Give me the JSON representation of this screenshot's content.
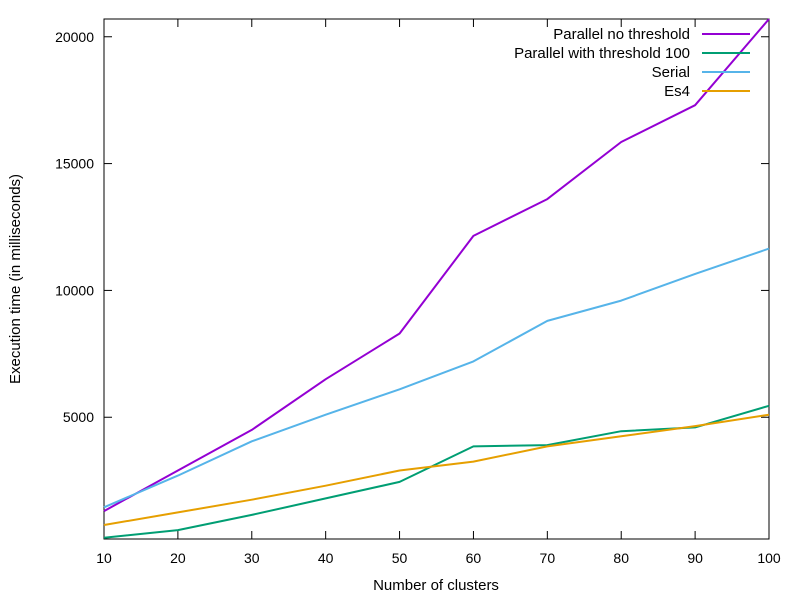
{
  "chart_data": {
    "type": "line",
    "title": "",
    "xlabel": "Number of clusters",
    "ylabel": "Execution time (in milliseconds)",
    "x": [
      10,
      20,
      30,
      40,
      50,
      60,
      70,
      80,
      90,
      100
    ],
    "xlim": [
      10,
      100
    ],
    "ylim": [
      200,
      20700
    ],
    "xticks": [
      10,
      20,
      30,
      40,
      50,
      60,
      70,
      80,
      90,
      100
    ],
    "yticks": [
      5000,
      10000,
      15000,
      20000
    ],
    "grid": false,
    "legend_position": "top-right",
    "series": [
      {
        "name": "Parallel no threshold",
        "color": "#9400d3",
        "values": [
          1300,
          2900,
          4500,
          6500,
          8300,
          12150,
          13600,
          15850,
          17300,
          20700
        ]
      },
      {
        "name": "Parallel with threshold 100",
        "color": "#009e73",
        "values": [
          250,
          550,
          1150,
          1800,
          2450,
          3850,
          3900,
          4450,
          4600,
          5450
        ]
      },
      {
        "name": "Serial",
        "color": "#56b4e9",
        "values": [
          1450,
          2700,
          4050,
          5100,
          6100,
          7200,
          8800,
          9600,
          10650,
          11650
        ]
      },
      {
        "name": "Es4",
        "color": "#e69f00",
        "values": [
          750,
          1250,
          1750,
          2300,
          2900,
          3250,
          3850,
          4250,
          4650,
          5100
        ]
      }
    ]
  }
}
